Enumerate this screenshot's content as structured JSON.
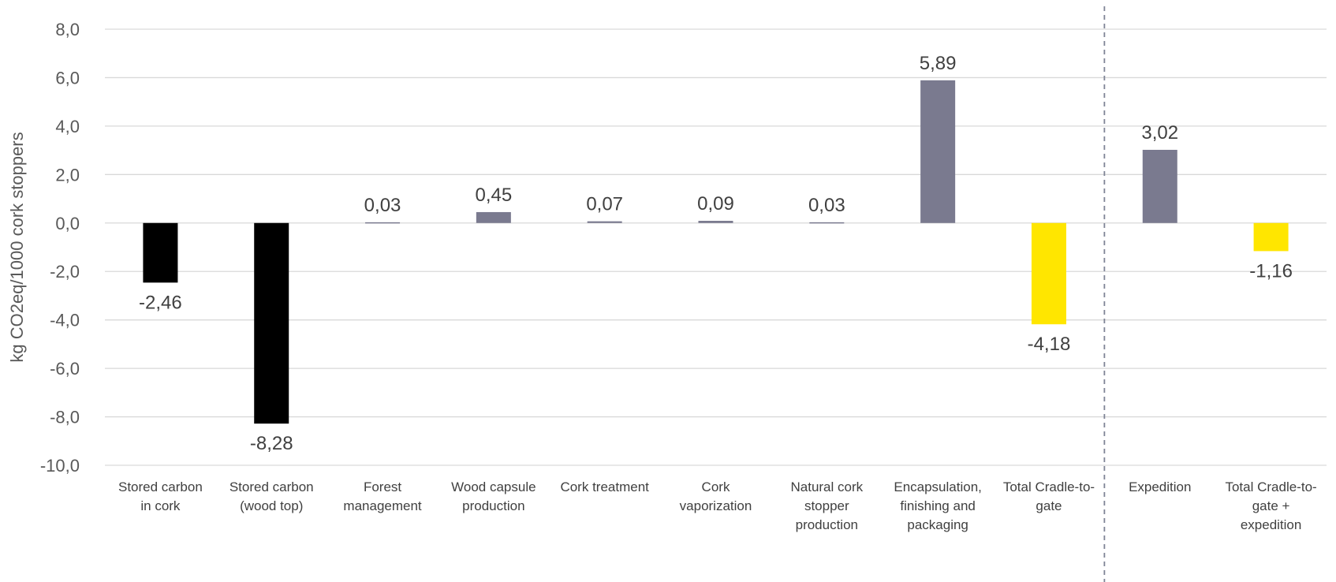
{
  "chart_data": {
    "type": "bar",
    "ylabel": "kg CO2eq/1000 cork stoppers",
    "ylim": [
      -10,
      8
    ],
    "ytick_step": 2,
    "ytick_labels": [
      "8,0",
      "6,0",
      "4,0",
      "2,0",
      "0,0",
      "-2,0",
      "-4,0",
      "-6,0",
      "-8,0",
      "-10,0"
    ],
    "grid": true,
    "categories": [
      [
        "Stored carbon",
        "in cork"
      ],
      [
        "Stored carbon",
        "(wood top)"
      ],
      [
        "Forest",
        "management"
      ],
      [
        "Wood capsule",
        "production"
      ],
      [
        "Cork treatment"
      ],
      [
        "Cork",
        "vaporization"
      ],
      [
        "Natural cork",
        "stopper",
        "production"
      ],
      [
        "Encapsulation,",
        "finishing and",
        "packaging"
      ],
      [
        "Total Cradle-to-",
        "gate"
      ],
      [
        "Expedition"
      ],
      [
        "Total Cradle-to-",
        "gate +",
        "expedition"
      ]
    ],
    "values": [
      -2.46,
      -8.28,
      0.03,
      0.45,
      0.07,
      0.09,
      0.03,
      5.89,
      -4.18,
      3.02,
      -1.16
    ],
    "value_labels": [
      "-2,46",
      "-8,28",
      "0,03",
      "0,45",
      "0,07",
      "0,09",
      "0,03",
      "5,89",
      "-4,18",
      "3,02",
      "-1,16"
    ],
    "bar_colors": [
      "#000000",
      "#000000",
      "#7a7a8f",
      "#7a7a8f",
      "#7a7a8f",
      "#7a7a8f",
      "#7a7a8f",
      "#7a7a8f",
      "#ffe600",
      "#7a7a8f",
      "#ffe600"
    ],
    "separator_after_index": 8,
    "colors": {
      "stored_carbon": "#000000",
      "process": "#7a7a8f",
      "total": "#ffe600",
      "gridline": "#d9d9d9",
      "separator": "#7f8496"
    }
  }
}
